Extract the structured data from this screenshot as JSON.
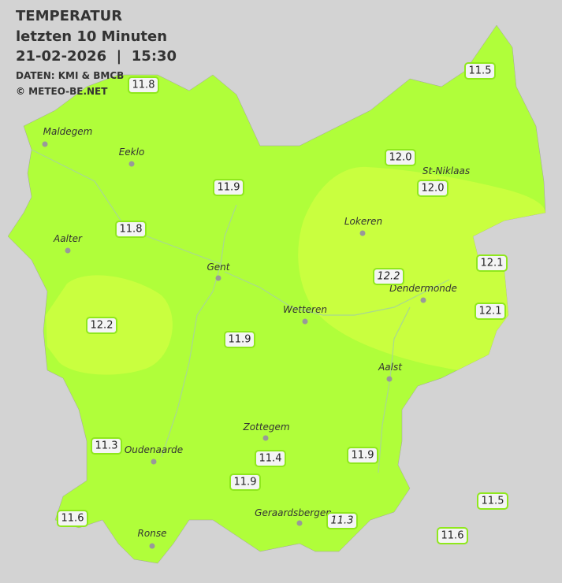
{
  "header": {
    "title": "TEMPERATUR",
    "subtitle": "letzten 10 Minuten",
    "datetime": "21-02-2026  |  15:30",
    "source": "DATEN: KMI & BMCB",
    "copyright": "© METEO-BE.NET"
  },
  "cities": [
    "Maldegem",
    "Eeklo",
    "Aalter",
    "Gent",
    "Lokeren",
    "St-Niklaas",
    "Dendermonde",
    "Wetteren",
    "Aalst",
    "Zottegem",
    "Oudenaarde",
    "Ronse",
    "Geraardsbergen"
  ],
  "stations": [
    "11.8",
    "11.5",
    "12.0",
    "12.0",
    "11.9",
    "11.8",
    "12.1",
    "12.2",
    "12.1",
    "12.2",
    "11.9",
    "11.3",
    "11.4",
    "11.9",
    "11.9",
    "11.5",
    "11.6",
    "11.3",
    "11.6"
  ]
}
